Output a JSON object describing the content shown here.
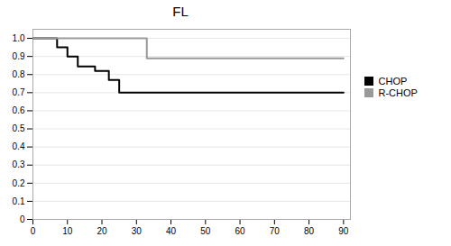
{
  "chart_data": {
    "type": "line",
    "title": "FL",
    "series": [
      {
        "name": "CHOP",
        "color": "#000000",
        "x": [
          0,
          7,
          7,
          10,
          10,
          13,
          13,
          18,
          18,
          22,
          22,
          25,
          25,
          90
        ],
        "values": [
          1.0,
          1.0,
          0.95,
          0.95,
          0.9,
          0.9,
          0.845,
          0.845,
          0.82,
          0.82,
          0.77,
          0.77,
          0.7,
          0.7
        ]
      },
      {
        "name": "R-CHOP",
        "color": "#999999",
        "x": [
          0,
          33,
          33,
          90
        ],
        "values": [
          1.0,
          1.0,
          0.89,
          0.89
        ]
      }
    ],
    "xlim": [
      0,
      92
    ],
    "ylim": [
      0,
      1.05
    ],
    "xticks": [
      0,
      10,
      20,
      30,
      40,
      50,
      60,
      70,
      80,
      90
    ],
    "yticks": [
      0,
      0.1,
      0.2,
      0.3,
      0.4,
      0.5,
      0.6,
      0.7,
      0.8,
      0.9,
      {
        "value": 1.0,
        "label": "1.0"
      }
    ],
    "grid": "y",
    "legend": "right"
  }
}
